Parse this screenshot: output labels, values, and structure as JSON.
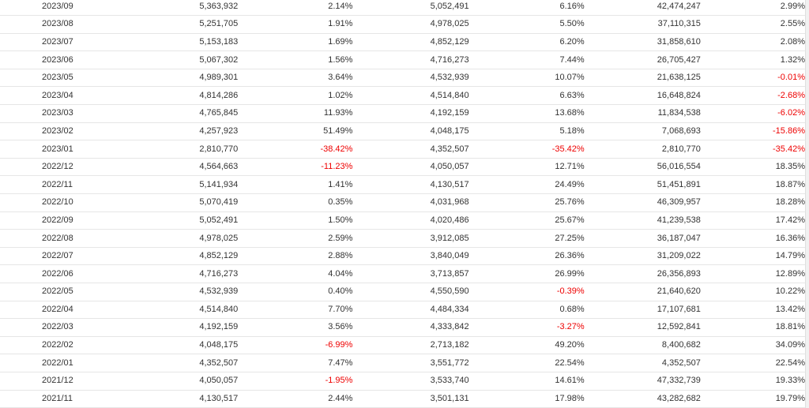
{
  "table": {
    "negative_color": "#ee0000",
    "rows": [
      [
        "2023/09",
        "5,363,932",
        "2.14%",
        "5,052,491",
        "6.16%",
        "42,474,247",
        "2.99%"
      ],
      [
        "2023/08",
        "5,251,705",
        "1.91%",
        "4,978,025",
        "5.50%",
        "37,110,315",
        "2.55%"
      ],
      [
        "2023/07",
        "5,153,183",
        "1.69%",
        "4,852,129",
        "6.20%",
        "31,858,610",
        "2.08%"
      ],
      [
        "2023/06",
        "5,067,302",
        "1.56%",
        "4,716,273",
        "7.44%",
        "26,705,427",
        "1.32%"
      ],
      [
        "2023/05",
        "4,989,301",
        "3.64%",
        "4,532,939",
        "10.07%",
        "21,638,125",
        "-0.01%"
      ],
      [
        "2023/04",
        "4,814,286",
        "1.02%",
        "4,514,840",
        "6.63%",
        "16,648,824",
        "-2.68%"
      ],
      [
        "2023/03",
        "4,765,845",
        "11.93%",
        "4,192,159",
        "13.68%",
        "11,834,538",
        "-6.02%"
      ],
      [
        "2023/02",
        "4,257,923",
        "51.49%",
        "4,048,175",
        "5.18%",
        "7,068,693",
        "-15.86%"
      ],
      [
        "2023/01",
        "2,810,770",
        "-38.42%",
        "4,352,507",
        "-35.42%",
        "2,810,770",
        "-35.42%"
      ],
      [
        "2022/12",
        "4,564,663",
        "-11.23%",
        "4,050,057",
        "12.71%",
        "56,016,554",
        "18.35%"
      ],
      [
        "2022/11",
        "5,141,934",
        "1.41%",
        "4,130,517",
        "24.49%",
        "51,451,891",
        "18.87%"
      ],
      [
        "2022/10",
        "5,070,419",
        "0.35%",
        "4,031,968",
        "25.76%",
        "46,309,957",
        "18.28%"
      ],
      [
        "2022/09",
        "5,052,491",
        "1.50%",
        "4,020,486",
        "25.67%",
        "41,239,538",
        "17.42%"
      ],
      [
        "2022/08",
        "4,978,025",
        "2.59%",
        "3,912,085",
        "27.25%",
        "36,187,047",
        "16.36%"
      ],
      [
        "2022/07",
        "4,852,129",
        "2.88%",
        "3,840,049",
        "26.36%",
        "31,209,022",
        "14.79%"
      ],
      [
        "2022/06",
        "4,716,273",
        "4.04%",
        "3,713,857",
        "26.99%",
        "26,356,893",
        "12.89%"
      ],
      [
        "2022/05",
        "4,532,939",
        "0.40%",
        "4,550,590",
        "-0.39%",
        "21,640,620",
        "10.22%"
      ],
      [
        "2022/04",
        "4,514,840",
        "7.70%",
        "4,484,334",
        "0.68%",
        "17,107,681",
        "13.42%"
      ],
      [
        "2022/03",
        "4,192,159",
        "3.56%",
        "4,333,842",
        "-3.27%",
        "12,592,841",
        "18.81%"
      ],
      [
        "2022/02",
        "4,048,175",
        "-6.99%",
        "2,713,182",
        "49.20%",
        "8,400,682",
        "34.09%"
      ],
      [
        "2022/01",
        "4,352,507",
        "7.47%",
        "3,551,772",
        "22.54%",
        "4,352,507",
        "22.54%"
      ],
      [
        "2021/12",
        "4,050,057",
        "-1.95%",
        "3,533,740",
        "14.61%",
        "47,332,739",
        "19.33%"
      ],
      [
        "2021/11",
        "4,130,517",
        "2.44%",
        "3,501,131",
        "17.98%",
        "43,282,682",
        "19.79%"
      ]
    ]
  }
}
